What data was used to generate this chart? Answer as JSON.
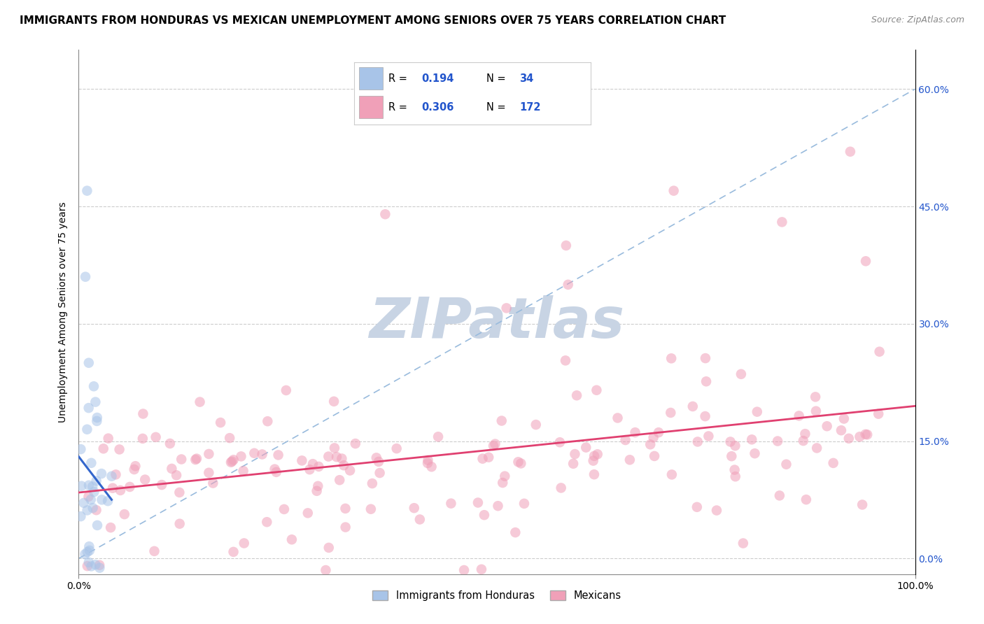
{
  "title": "IMMIGRANTS FROM HONDURAS VS MEXICAN UNEMPLOYMENT AMONG SENIORS OVER 75 YEARS CORRELATION CHART",
  "source": "Source: ZipAtlas.com",
  "ylabel": "Unemployment Among Seniors over 75 years",
  "xlim": [
    0,
    1.0
  ],
  "ylim": [
    -0.02,
    0.65
  ],
  "xtick_positions": [
    0.0,
    1.0
  ],
  "xtick_labels": [
    "0.0%",
    "100.0%"
  ],
  "ytick_vals": [
    0.0,
    0.15,
    0.3,
    0.45,
    0.6
  ],
  "ytick_labels": [
    "0.0%",
    "15.0%",
    "30.0%",
    "45.0%",
    "60.0%"
  ],
  "r_honduras": 0.194,
  "n_honduras": 34,
  "r_mexicans": 0.306,
  "n_mexicans": 172,
  "color_honduras": "#a8c4e8",
  "color_mexicans": "#f0a0b8",
  "line_color_honduras": "#3366cc",
  "line_color_mexicans": "#e04070",
  "diagonal_color": "#99bbdd",
  "watermark": "ZIPatlas",
  "watermark_color": "#c8d4e4",
  "legend_text_color": "#2255cc",
  "background_color": "#ffffff",
  "title_fontsize": 11,
  "source_fontsize": 9,
  "axis_label_fontsize": 10,
  "tick_fontsize": 10
}
